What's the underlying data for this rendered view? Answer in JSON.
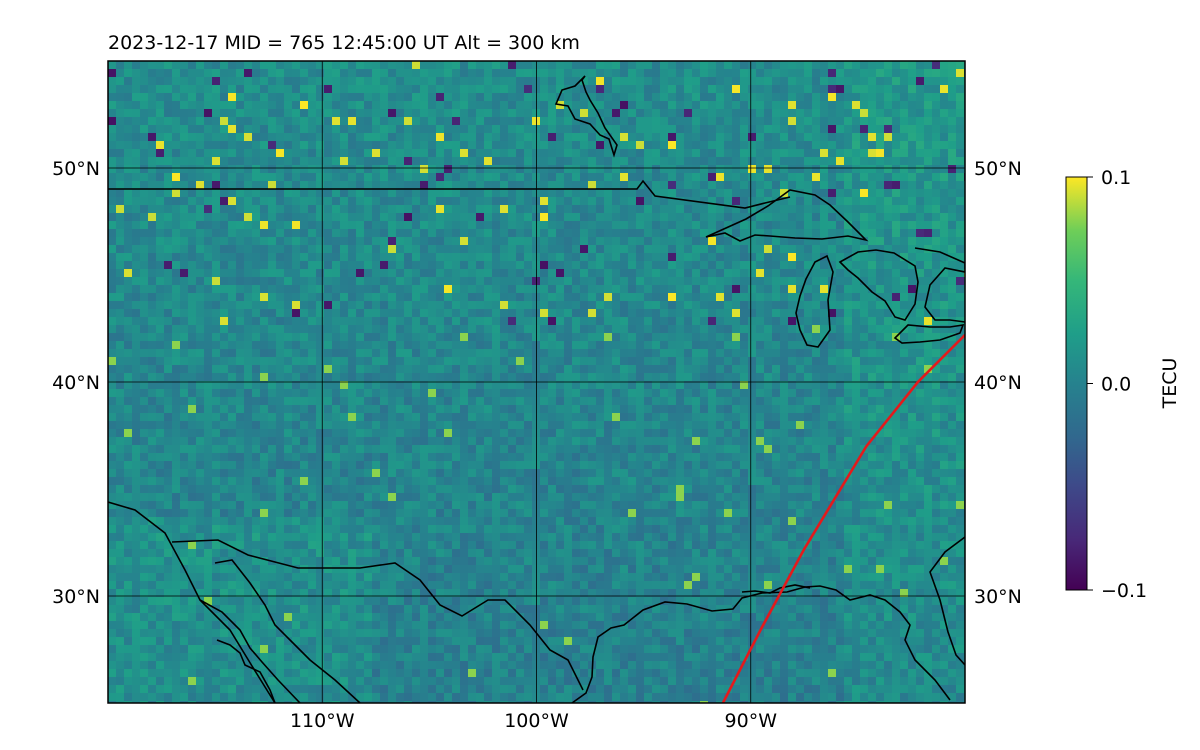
{
  "title": "2023-12-17  MID = 765    12:45:00  UT  Alt = 300 km",
  "map": {
    "lon_range": [
      -120,
      -80
    ],
    "lat_range": [
      25,
      55
    ],
    "lon_ticks": [
      {
        "lon": -110,
        "label": "110°W"
      },
      {
        "lon": -100,
        "label": "100°W"
      },
      {
        "lon": -90,
        "label": "90°W"
      }
    ],
    "lat_ticks": [
      {
        "lat": 50,
        "label": "50°N"
      },
      {
        "lat": 40,
        "label": "40°N"
      },
      {
        "lat": 30,
        "label": "30°N"
      }
    ],
    "field": "differential TEC (viridis, mostly near 0 with yellow/purple speckles)",
    "track_color": "#e31a1c",
    "track": [
      [
        -91.3,
        25
      ],
      [
        -89.5,
        28.5
      ],
      [
        -87.5,
        32.2
      ],
      [
        -84.6,
        37
      ],
      [
        -82.2,
        40
      ],
      [
        -80,
        42.2
      ]
    ]
  },
  "colorbar": {
    "label": "TECU",
    "ticks": [
      {
        "value": 0.1,
        "label": "0.1"
      },
      {
        "value": 0.0,
        "label": "0.0"
      },
      {
        "value": -0.1,
        "label": "−0.1"
      }
    ],
    "colormap": "viridis"
  }
}
